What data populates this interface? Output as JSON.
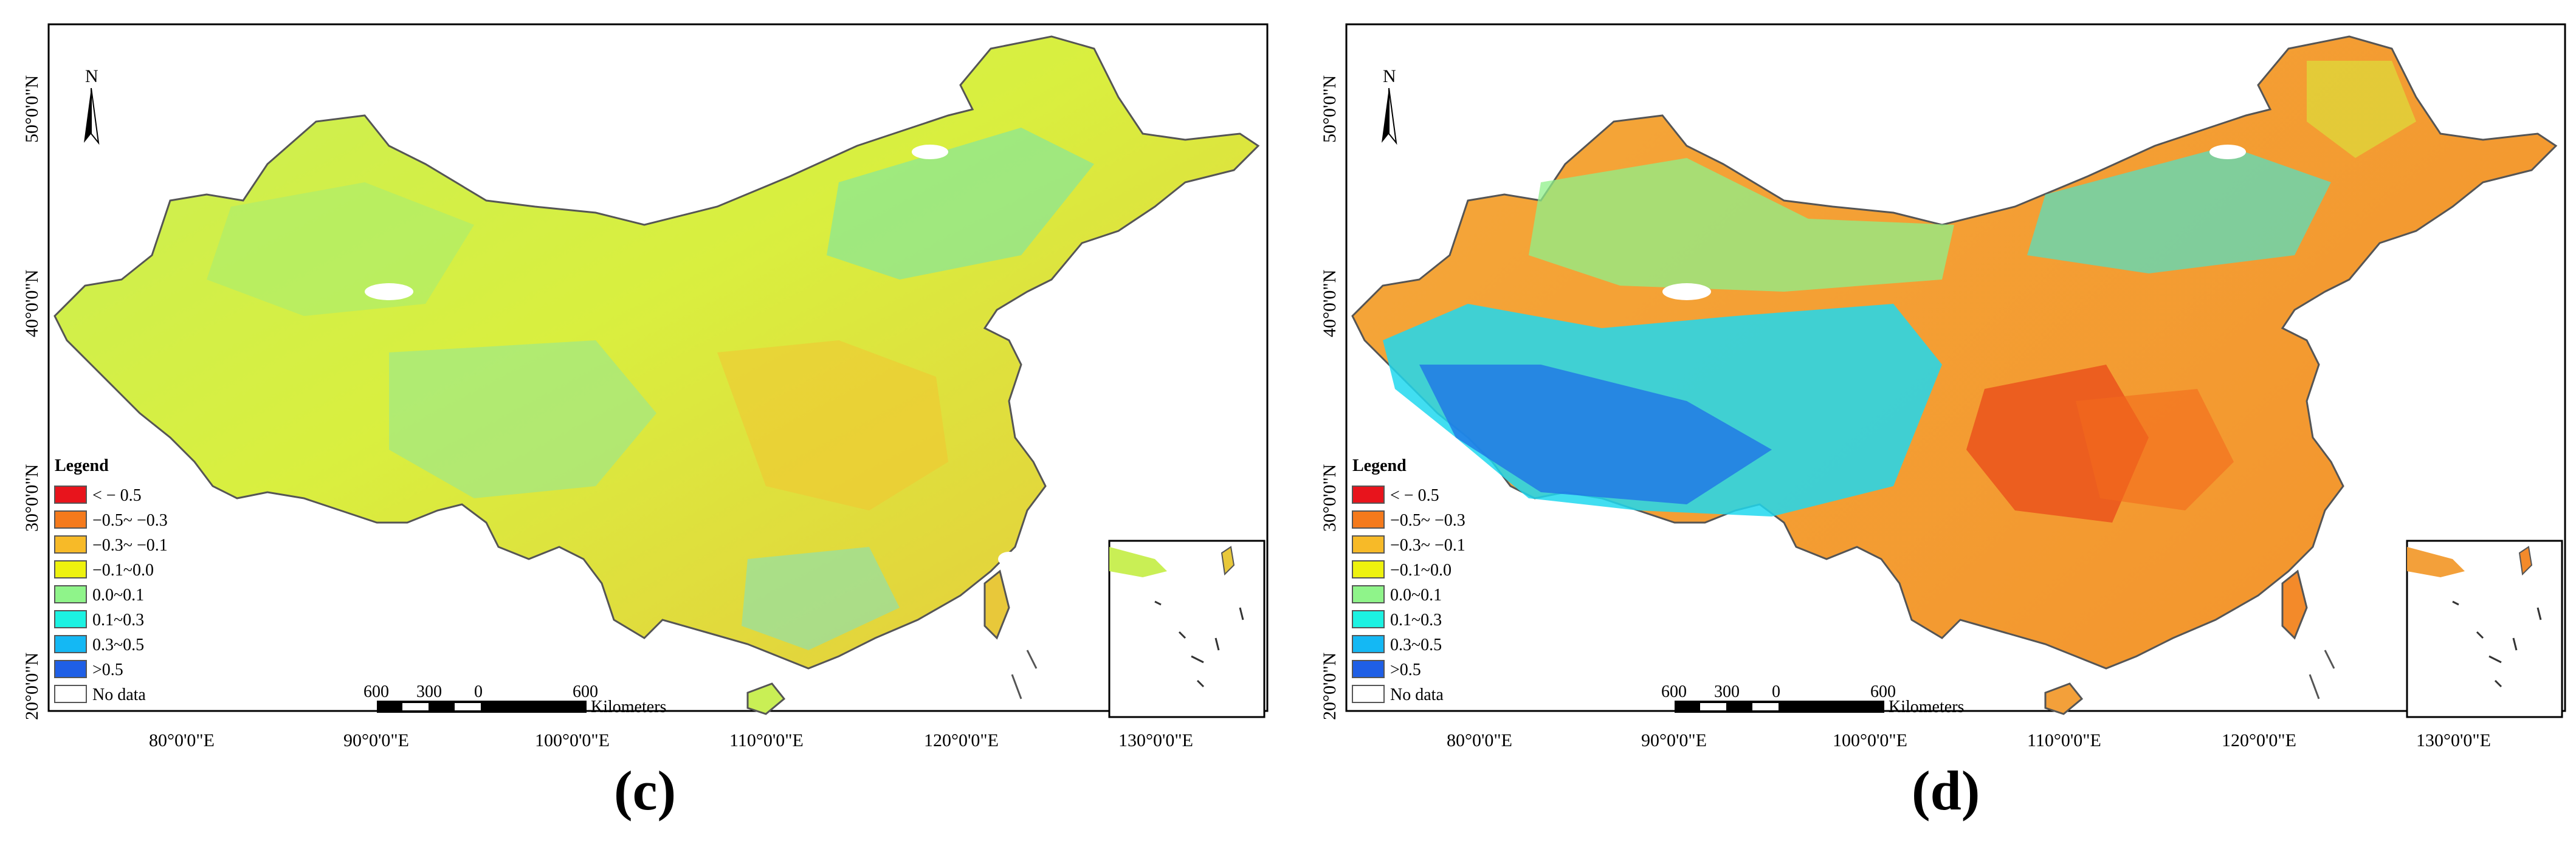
{
  "figure": {
    "panels": [
      {
        "id": "c",
        "caption": "(c)",
        "lat_labels": [
          "50°0'0\"N",
          "40°0'0\"N",
          "30°0'0\"N",
          "20°0'0\"N"
        ],
        "lon_labels": [
          "80°0'0\"E",
          "90°0'0\"E",
          "100°0'0\"E",
          "110°0'0\"E",
          "120°0'0\"E",
          "130°0'0\"E"
        ]
      },
      {
        "id": "d",
        "caption": "(d)",
        "lat_labels": [
          "50°0'0\"N",
          "40°0'0\"N",
          "30°0'0\"N",
          "20°0'0\"N"
        ],
        "lon_labels": [
          "80°0'0\"E",
          "90°0'0\"E",
          "100°0'0\"E",
          "110°0'0\"E",
          "120°0'0\"E",
          "130°0'0\"E"
        ]
      }
    ],
    "north_arrow": "N",
    "legend": {
      "title": "Legend",
      "items": [
        {
          "label": "< − 0.5",
          "color": "#e8141c"
        },
        {
          "label": "−0.5~ −0.3",
          "color": "#f57a1c"
        },
        {
          "label": "−0.3~ −0.1",
          "color": "#f7ba28"
        },
        {
          "label": "−0.1~0.0",
          "color": "#eef20e"
        },
        {
          "label": "0.0~0.1",
          "color": "#8ff48a"
        },
        {
          "label": "0.1~0.3",
          "color": "#1cf2e2"
        },
        {
          "label": "0.3~0.5",
          "color": "#14b8f4"
        },
        {
          "label": ">0.5",
          "color": "#1f5fe6"
        },
        {
          "label": "No data",
          "color": "#ffffff"
        }
      ]
    },
    "scale_bar": {
      "ticks": [
        "600",
        "300",
        "0",
        "600"
      ],
      "unit": "Kilometers"
    },
    "map_fill": {
      "c_main": "#d7ef4a",
      "d_main": "#f7a23a"
    }
  }
}
